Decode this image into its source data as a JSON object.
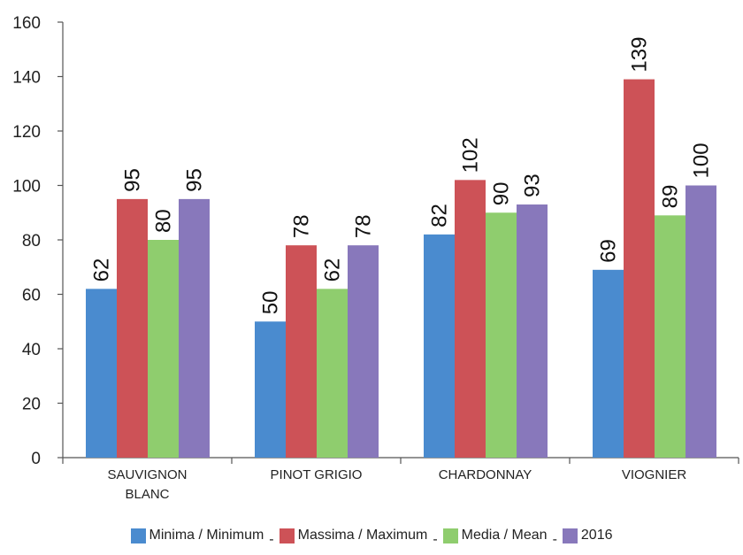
{
  "chart_data": {
    "type": "bar",
    "categories": [
      [
        "SAUVIGNON",
        "BLANC"
      ],
      [
        "PINOT GRIGIO"
      ],
      [
        "CHARDONNAY"
      ],
      [
        "VIOGNIER"
      ]
    ],
    "series": [
      {
        "name": "Minima / Minimum",
        "values": [
          62,
          50,
          82,
          69
        ],
        "color": "#4a8bcf"
      },
      {
        "name": "Massima / Maximum",
        "values": [
          95,
          78,
          102,
          139
        ],
        "color": "#cd5257"
      },
      {
        "name": "Media / Mean",
        "values": [
          80,
          62,
          90,
          89
        ],
        "color": "#8fcd6e"
      },
      {
        "name": "2016",
        "values": [
          95,
          78,
          93,
          100
        ],
        "color": "#8878bb"
      }
    ],
    "ylim": [
      0,
      160
    ],
    "yticks": [
      0,
      20,
      40,
      60,
      80,
      100,
      120,
      140,
      160
    ],
    "grid": false,
    "legend_position": "bottom",
    "legend_separator": "-"
  }
}
